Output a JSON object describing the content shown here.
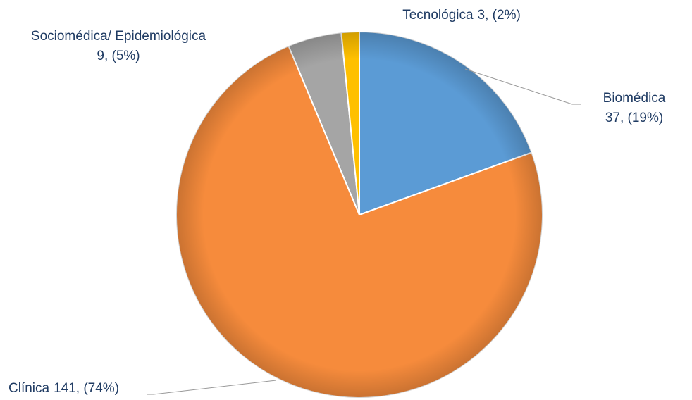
{
  "chart_data": {
    "type": "pie",
    "categories": [
      "Biomédica",
      "Clínica",
      "Sociomédica/ Epidemiológica",
      "Tecnológica"
    ],
    "values": [
      37,
      141,
      9,
      3
    ],
    "value_labels": [
      "37, (19%)",
      "141, (74%)",
      "9, (5%)",
      "3, (2%)"
    ],
    "colors": [
      "#5b9bd5",
      "#f68b3c",
      "#a5a5a5",
      "#ffc000"
    ],
    "start_angle": 0,
    "direction": "clockwise"
  }
}
